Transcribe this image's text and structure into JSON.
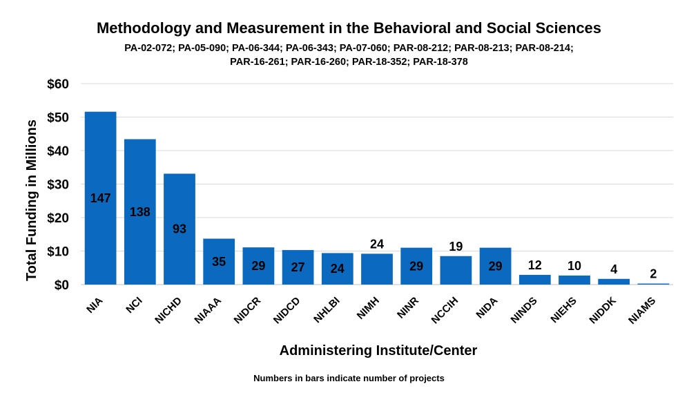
{
  "chart_data": {
    "type": "bar",
    "title": "Methodology and Measurement in the Behavioral and Social Sciences",
    "subtitle_lines": [
      "PA-02-072; PA-05-090; PA-06-344; PA-06-343; PA-07-060; PAR-08-212; PAR-08-213; PAR-08-214;",
      "PAR-16-261; PAR-16-260; PAR-18-352; PAR-18-378"
    ],
    "xlabel": "Administering Institute/Center",
    "ylabel": "Total Funding in Millions",
    "ylim": [
      0,
      60
    ],
    "yticks": [
      "$0",
      "$10",
      "$20",
      "$30",
      "$40",
      "$50",
      "$60"
    ],
    "grid": true,
    "bar_color": "#0b6abf",
    "categories": [
      "NIA",
      "NCI",
      "NICHD",
      "NIAAA",
      "NIDCR",
      "NIDCD",
      "NHLBI",
      "NIMH",
      "NINR",
      "NCCIH",
      "NIDA",
      "NINDS",
      "NIEHS",
      "NIDDK",
      "NIAMS"
    ],
    "values": [
      51.6,
      43.4,
      33.1,
      13.7,
      11.1,
      10.3,
      9.4,
      9.2,
      11.0,
      8.5,
      11.0,
      2.9,
      2.7,
      1.7,
      0.3
    ],
    "project_counts": [
      "147",
      "138",
      "93",
      "35",
      "29",
      "27",
      "24",
      "24",
      "29",
      "19",
      "29",
      "12",
      "10",
      "4",
      "2"
    ],
    "footnote": "Numbers in bars indicate number of projects"
  }
}
